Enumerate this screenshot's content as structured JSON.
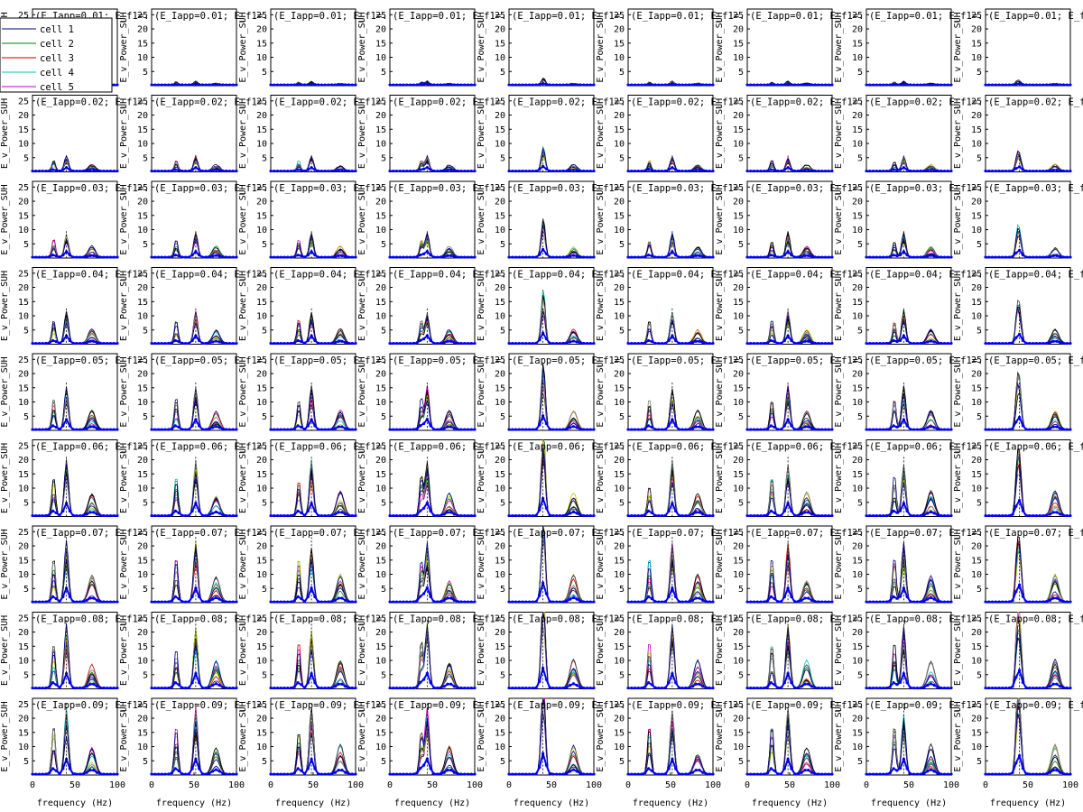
{
  "chart_data": {
    "type": "line",
    "layout": "small-multiples",
    "rows": 9,
    "cols": 9,
    "xlabel": "frequency (Hz)",
    "ylabel": "E_v_Power_SUH",
    "xlim": [
      0,
      100
    ],
    "ylim": [
      0,
      27
    ],
    "xticks": [
      0,
      50,
      100
    ],
    "yticks": [
      5,
      10,
      15,
      20,
      25
    ],
    "row_titles": [
      "(E_Iapp=0.01; E_f1=...",
      "(E_Iapp=0.02; E_f1=...",
      "(E_Iapp=0.03; E_f1=...",
      "(E_Iapp=0.04; E_f1=...",
      "(E_Iapp=0.05; E_f1=...",
      "(E_Iapp=0.06; E_f1=...",
      "(E_Iapp=0.07; E_f1=...",
      "(E_Iapp=0.08; E_f1=...",
      "(E_Iapp=0.09; E_f1=..."
    ],
    "legend": {
      "placement": "top-left",
      "entries": [
        {
          "name": "cell 1",
          "color": "#00007f"
        },
        {
          "name": "cell 2",
          "color": "#007f00"
        },
        {
          "name": "cell 3",
          "color": "#bf0000"
        },
        {
          "name": "cell 4",
          "color": "#00bfbf"
        },
        {
          "name": "cell 5",
          "color": "#bf00bf"
        }
      ]
    },
    "extra_series_colors": [
      "#bfbf00",
      "#3f3f3f",
      "#000000",
      "#7f7f7f",
      "#00007f"
    ],
    "mean_color": "#0000ff",
    "panel_peak_sets": [
      [
        [
          40,
          1.2
        ]
      ],
      [
        [
          40,
          5.5
        ],
        [
          60,
          1
        ]
      ],
      [
        [
          40,
          8.5
        ],
        [
          80,
          2
        ]
      ],
      [
        [
          40,
          12
        ],
        [
          80,
          6
        ]
      ],
      [
        [
          40,
          16
        ],
        [
          80,
          8
        ]
      ],
      [
        [
          40,
          20
        ],
        [
          80,
          10
        ]
      ],
      [
        [
          40,
          22
        ],
        [
          80,
          8
        ]
      ],
      [
        [
          40,
          23
        ],
        [
          80,
          10
        ]
      ],
      [
        [
          40,
          24
        ],
        [
          80,
          11
        ]
      ]
    ],
    "row_max_values": [
      1.5,
      5.5,
      9,
      12,
      16,
      20,
      22,
      23,
      24
    ]
  }
}
